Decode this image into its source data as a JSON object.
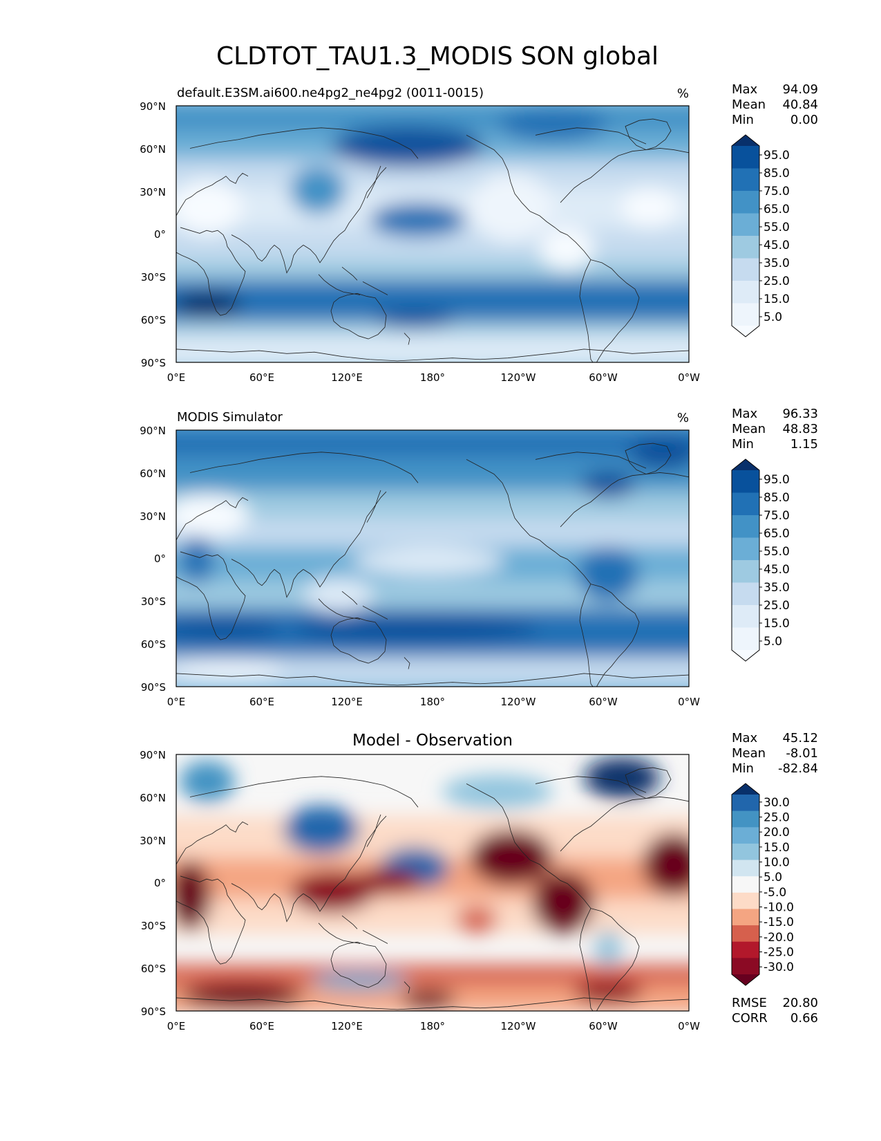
{
  "title": "CLDTOT_TAU1.3_MODIS SON global",
  "panels": [
    {
      "title_left": "default.E3SM.ai600.ne4pg2_ne4pg2 (0011-0015)",
      "title_center": "",
      "units": "%",
      "stats": [
        {
          "label": "Max",
          "value": "94.09"
        },
        {
          "label": "Mean",
          "value": "40.84"
        },
        {
          "label": "Min",
          "value": "0.00"
        }
      ],
      "extra_stats": [],
      "colorbar": {
        "labels": [
          "95.0",
          "85.0",
          "75.0",
          "65.0",
          "55.0",
          "45.0",
          "35.0",
          "25.0",
          "15.0",
          "5.0"
        ],
        "colors": [
          "#08306b",
          "#08519c",
          "#2171b5",
          "#4292c6",
          "#6baed6",
          "#9ecae1",
          "#c6dbef",
          "#deebf7",
          "#eef5fc",
          "#f7fbff"
        ]
      }
    },
    {
      "title_left": "MODIS Simulator",
      "title_center": "",
      "units": "%",
      "stats": [
        {
          "label": "Max",
          "value": "96.33"
        },
        {
          "label": "Mean",
          "value": "48.83"
        },
        {
          "label": "Min",
          "value": "1.15"
        }
      ],
      "extra_stats": [],
      "colorbar": {
        "labels": [
          "95.0",
          "85.0",
          "75.0",
          "65.0",
          "55.0",
          "45.0",
          "35.0",
          "25.0",
          "15.0",
          "5.0"
        ],
        "colors": [
          "#08306b",
          "#08519c",
          "#2171b5",
          "#4292c6",
          "#6baed6",
          "#9ecae1",
          "#c6dbef",
          "#deebf7",
          "#eef5fc",
          "#f7fbff"
        ]
      }
    },
    {
      "title_left": "",
      "title_center": "Model - Observation",
      "units": "",
      "stats": [
        {
          "label": "Max",
          "value": "45.12"
        },
        {
          "label": "Mean",
          "value": "-8.01"
        },
        {
          "label": "Min",
          "value": "-82.84"
        }
      ],
      "extra_stats": [
        {
          "label": "RMSE",
          "value": "20.80"
        },
        {
          "label": "CORR",
          "value": "0.66"
        }
      ],
      "colorbar": {
        "labels": [
          "30.0",
          "25.0",
          "20.0",
          "15.0",
          "10.0",
          "5.0",
          "-5.0",
          "-10.0",
          "-15.0",
          "-20.0",
          "-25.0",
          "-30.0"
        ],
        "colors": [
          "#08306b",
          "#2166ac",
          "#4393c3",
          "#6baed6",
          "#92c5de",
          "#d1e5f0",
          "#f7f7f7",
          "#fddbc7",
          "#f4a582",
          "#d6604d",
          "#b2182b",
          "#8b0a24",
          "#67001f"
        ]
      }
    }
  ],
  "chart_data": [
    {
      "type": "heatmap",
      "title": "default.E3SM.ai600.ne4pg2_ne4pg2 (0011-0015)",
      "units": "%",
      "xlim": [
        0,
        360
      ],
      "ylim": [
        -90,
        90
      ],
      "x_ticks": [
        "0°E",
        "60°E",
        "120°E",
        "180°",
        "120°W",
        "60°W",
        "0°W"
      ],
      "y_ticks": [
        "90°N",
        "60°N",
        "30°N",
        "0°",
        "30°S",
        "60°S",
        "90°S"
      ],
      "zonal_mean_by_lat": {
        "lat": [
          80,
          60,
          40,
          20,
          0,
          -20,
          -40,
          -60,
          -80
        ],
        "value": [
          70,
          72,
          50,
          25,
          30,
          25,
          55,
          75,
          25
        ]
      },
      "features": [
        {
          "lon": 160,
          "lat": 55,
          "value": 88
        },
        {
          "lon": 115,
          "lat": 28,
          "value": 72
        },
        {
          "lon": 170,
          "lat": 8,
          "value": 78
        },
        {
          "lon": 30,
          "lat": -55,
          "value": 88
        },
        {
          "lon": 170,
          "lat": -60,
          "value": 82
        },
        {
          "lon": 310,
          "lat": -58,
          "value": 85
        },
        {
          "lon": 20,
          "lat": 20,
          "value": 3
        },
        {
          "lon": 240,
          "lat": 22,
          "value": 15
        },
        {
          "lon": 290,
          "lat": -5,
          "value": 12
        }
      ],
      "colorbar_ticks": [
        5,
        15,
        25,
        35,
        45,
        55,
        65,
        75,
        85,
        95
      ],
      "max": 94.09,
      "mean": 40.84,
      "min": 0.0
    },
    {
      "type": "heatmap",
      "title": "MODIS Simulator",
      "units": "%",
      "xlim": [
        0,
        360
      ],
      "ylim": [
        -90,
        90
      ],
      "x_ticks": [
        "0°E",
        "60°E",
        "120°E",
        "180°",
        "120°W",
        "60°W",
        "0°W"
      ],
      "y_ticks": [
        "90°N",
        "60°N",
        "30°N",
        "0°",
        "30°S",
        "60°S",
        "90°S"
      ],
      "zonal_mean_by_lat": {
        "lat": [
          80,
          60,
          40,
          20,
          0,
          -20,
          -40,
          -60,
          -80
        ],
        "value": [
          78,
          75,
          60,
          40,
          55,
          45,
          65,
          85,
          30
        ]
      },
      "features": [
        {
          "lon": 10,
          "lat": 0,
          "value": 82
        },
        {
          "lon": 290,
          "lat": -10,
          "value": 80
        },
        {
          "lon": 115,
          "lat": 25,
          "value": 65
        },
        {
          "lon": 180,
          "lat": 0,
          "value": 20
        },
        {
          "lon": 20,
          "lat": 22,
          "value": 10
        },
        {
          "lon": 210,
          "lat": -55,
          "value": 90
        },
        {
          "lon": 80,
          "lat": -75,
          "value": 15
        }
      ],
      "colorbar_ticks": [
        5,
        15,
        25,
        35,
        45,
        55,
        65,
        75,
        85,
        95
      ],
      "max": 96.33,
      "mean": 48.83,
      "min": 1.15
    },
    {
      "type": "heatmap",
      "title": "Model - Observation",
      "units": "",
      "xlim": [
        0,
        360
      ],
      "ylim": [
        -90,
        90
      ],
      "x_ticks": [
        "0°E",
        "60°E",
        "120°E",
        "180°",
        "120°W",
        "60°W",
        "0°W"
      ],
      "y_ticks": [
        "90°N",
        "60°N",
        "30°N",
        "0°",
        "30°S",
        "60°S",
        "90°S"
      ],
      "zonal_mean_by_lat": {
        "lat": [
          80,
          60,
          40,
          20,
          0,
          -20,
          -40,
          -60,
          -80
        ],
        "value": [
          0,
          0,
          -5,
          -10,
          -20,
          -10,
          -5,
          -3,
          -20
        ]
      },
      "features": [
        {
          "lon": 310,
          "lat": 75,
          "value": 35
        },
        {
          "lon": 110,
          "lat": 35,
          "value": 28
        },
        {
          "lon": 165,
          "lat": 10,
          "value": 30
        },
        {
          "lon": 240,
          "lat": 15,
          "value": -35
        },
        {
          "lon": 280,
          "lat": -15,
          "value": -40
        },
        {
          "lon": 10,
          "lat": -10,
          "value": -40
        },
        {
          "lon": 110,
          "lat": -5,
          "value": -32
        },
        {
          "lon": 340,
          "lat": 10,
          "value": -35
        },
        {
          "lon": 60,
          "lat": -80,
          "value": -35
        },
        {
          "lon": 300,
          "lat": -78,
          "value": -28
        },
        {
          "lon": 160,
          "lat": -75,
          "value": 18
        }
      ],
      "colorbar_ticks": [
        -30,
        -25,
        -20,
        -15,
        -10,
        -5,
        5,
        10,
        15,
        20,
        25,
        30
      ],
      "max": 45.12,
      "mean": -8.01,
      "min": -82.84,
      "rmse": 20.8,
      "corr": 0.66
    }
  ]
}
